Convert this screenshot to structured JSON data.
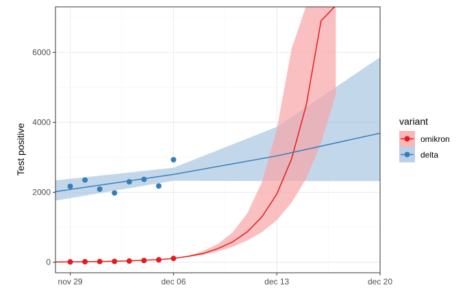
{
  "chart_data": {
    "type": "line",
    "xlabel": "",
    "ylabel": "Test positive",
    "x_ticks": [
      "nov 29",
      "dec 06",
      "dec 13",
      "dec 20"
    ],
    "y_ticks": [
      "0",
      "2000",
      "4000",
      "6000"
    ],
    "xlim": [
      "2021-11-28",
      "2021-12-20"
    ],
    "ylim": [
      -300,
      7300
    ],
    "grid": true,
    "legend": {
      "title": "variant",
      "position": "right"
    },
    "series": [
      {
        "name": "omikron",
        "color": "#e41a1c",
        "band_color": "#f8a5a6",
        "observed": {
          "x": [
            "2021-11-29",
            "2021-11-30",
            "2021-12-01",
            "2021-12-02",
            "2021-12-03",
            "2021-12-04",
            "2021-12-05",
            "2021-12-06"
          ],
          "y": [
            10,
            15,
            20,
            25,
            35,
            50,
            70,
            110
          ]
        },
        "fit": {
          "x": [
            "2021-11-28",
            "2021-11-29",
            "2021-11-30",
            "2021-12-01",
            "2021-12-02",
            "2021-12-03",
            "2021-12-04",
            "2021-12-05",
            "2021-12-06",
            "2021-12-07",
            "2021-12-08",
            "2021-12-09",
            "2021-12-10",
            "2021-12-11",
            "2021-12-12",
            "2021-12-13",
            "2021-12-14",
            "2021-12-15",
            "2021-12-16",
            "2021-12-17"
          ],
          "y": [
            8,
            11,
            15,
            21,
            29,
            40,
            56,
            78,
            110,
            170,
            250,
            390,
            580,
            870,
            1300,
            1950,
            2950,
            4500,
            6900,
            10500
          ],
          "lower": [
            8,
            11,
            15,
            21,
            29,
            40,
            56,
            78,
            110,
            150,
            210,
            310,
            440,
            620,
            860,
            1200,
            1700,
            2400,
            3400,
            4800
          ],
          "upper": [
            8,
            11,
            15,
            21,
            29,
            40,
            56,
            78,
            110,
            190,
            320,
            520,
            850,
            1400,
            2300,
            3800,
            6100,
            9800,
            15000,
            23000
          ]
        }
      },
      {
        "name": "delta",
        "color": "#377eb8",
        "band_color": "#a9c6e3",
        "observed": {
          "x": [
            "2021-11-29",
            "2021-11-30",
            "2021-12-01",
            "2021-12-02",
            "2021-12-03",
            "2021-12-04",
            "2021-12-05",
            "2021-12-06"
          ],
          "y": [
            2170,
            2350,
            2090,
            1980,
            2300,
            2370,
            2180,
            2930
          ]
        },
        "fit": {
          "x": [
            "2021-11-28",
            "2021-12-06",
            "2021-12-13",
            "2021-12-20"
          ],
          "y": [
            2020,
            2510,
            3040,
            3690
          ],
          "lower": [
            1760,
            2330,
            2320,
            2320
          ],
          "upper": [
            2340,
            2700,
            3870,
            5860
          ]
        }
      }
    ]
  }
}
